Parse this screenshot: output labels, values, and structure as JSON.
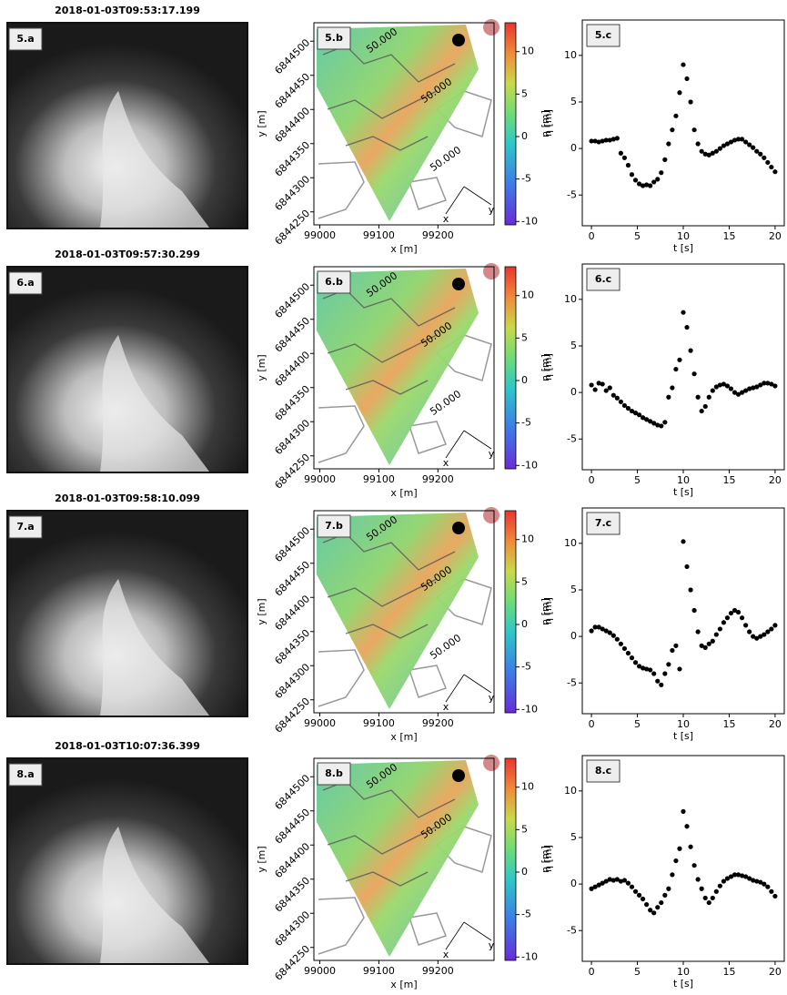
{
  "chart_data": [
    {
      "type": "image",
      "title": "2018-01-03T09:53:17.199",
      "label": "5.a"
    },
    {
      "type": "map",
      "label": "5.b",
      "xlabel": "x [m]",
      "ylabel": "y [m]",
      "xlim": [
        98990,
        99295
      ],
      "xticks": [
        99000,
        99100,
        99200
      ],
      "ylim": [
        6844231,
        6844527
      ],
      "yticks": [
        6844250,
        6844300,
        6844350,
        6844400,
        6844450,
        6844500
      ],
      "colorbar_label": "η [m]",
      "clim": [
        -10.4,
        13.4
      ],
      "cticks": [
        -10,
        -5,
        0,
        5,
        10
      ],
      "contour_labels": [
        "50.000",
        "50.000",
        "50.000"
      ],
      "compass": [
        "x",
        "y"
      ]
    },
    {
      "type": "scatter",
      "label": "5.c",
      "xlabel": "t [s]",
      "ylabel": "η [m]",
      "xlim": [
        -1,
        21
      ],
      "ylim": [
        -8.3,
        13.8
      ],
      "xticks": [
        0,
        5,
        10,
        15,
        20
      ],
      "yticks": [
        -5,
        0,
        5,
        10
      ],
      "series": [
        {
          "color": "#000000",
          "x": [
            0,
            0.4,
            0.8,
            1.2,
            1.6,
            2.0,
            2.4,
            2.8,
            3.2,
            3.6,
            4.0,
            4.4,
            4.8,
            5.2,
            5.6,
            6.0,
            6.4,
            6.8,
            7.2,
            7.6,
            8.0,
            8.4,
            8.8,
            9.2,
            9.6,
            10.0,
            10.4,
            10.8,
            11.2,
            11.6,
            12.0,
            12.4,
            12.8,
            13.2,
            13.6,
            14.0,
            14.4,
            14.8,
            15.2,
            15.6,
            16.0,
            16.4,
            16.8,
            17.2,
            17.6,
            18.0,
            18.4,
            18.8,
            19.2,
            19.6,
            20.0
          ],
          "values": [
            0.8,
            0.8,
            0.7,
            0.8,
            0.9,
            0.9,
            1.0,
            1.1,
            -0.5,
            -1.0,
            -1.8,
            -2.8,
            -3.4,
            -3.8,
            -4.0,
            -3.9,
            -4.0,
            -3.6,
            -3.3,
            -2.6,
            -1.2,
            0.5,
            2.0,
            3.5,
            6.0,
            9.0,
            7.5,
            5.0,
            2.0,
            0.5,
            -0.3,
            -0.6,
            -0.7,
            -0.5,
            -0.3,
            0.0,
            0.3,
            0.5,
            0.7,
            0.9,
            1.0,
            1.0,
            0.7,
            0.4,
            0.1,
            -0.3,
            -0.6,
            -1.0,
            -1.5,
            -2.0,
            -2.5
          ]
        }
      ]
    },
    {
      "type": "image",
      "title": "2018-01-03T09:57:30.299",
      "label": "6.a"
    },
    {
      "type": "map",
      "label": "6.b",
      "xlabel": "x [m]",
      "ylabel": "y [m]",
      "xlim": [
        98990,
        99295
      ],
      "xticks": [
        99000,
        99100,
        99200
      ],
      "ylim": [
        6844231,
        6844527
      ],
      "yticks": [
        6844250,
        6844300,
        6844350,
        6844400,
        6844450,
        6844500
      ],
      "colorbar_label": "η [m]",
      "clim": [
        -10.4,
        13.4
      ],
      "cticks": [
        -10,
        -5,
        0,
        5,
        10
      ],
      "contour_labels": [
        "50.000",
        "50.000",
        "50.000"
      ],
      "compass": [
        "x",
        "y"
      ]
    },
    {
      "type": "scatter",
      "label": "6.c",
      "xlabel": "t [s]",
      "ylabel": "η [m]",
      "xlim": [
        -1,
        21
      ],
      "ylim": [
        -8.3,
        13.8
      ],
      "xticks": [
        0,
        5,
        10,
        15,
        20
      ],
      "yticks": [
        -5,
        0,
        5,
        10
      ],
      "series": [
        {
          "color": "#000000",
          "x": [
            0,
            0.4,
            0.8,
            1.2,
            1.6,
            2.0,
            2.4,
            2.8,
            3.2,
            3.6,
            4.0,
            4.4,
            4.8,
            5.2,
            5.6,
            6.0,
            6.4,
            6.8,
            7.2,
            7.6,
            8.0,
            8.4,
            8.8,
            9.2,
            9.6,
            10.0,
            10.4,
            10.8,
            11.2,
            11.6,
            12.0,
            12.4,
            12.8,
            13.2,
            13.6,
            14.0,
            14.4,
            14.8,
            15.2,
            15.6,
            16.0,
            16.4,
            16.8,
            17.2,
            17.6,
            18.0,
            18.4,
            18.8,
            19.2,
            19.6,
            20.0
          ],
          "values": [
            0.8,
            0.3,
            1.0,
            0.9,
            0.2,
            0.5,
            -0.3,
            -0.6,
            -1.0,
            -1.4,
            -1.7,
            -2.0,
            -2.2,
            -2.4,
            -2.7,
            -2.9,
            -3.1,
            -3.3,
            -3.5,
            -3.6,
            -3.2,
            -0.5,
            0.5,
            2.5,
            3.5,
            8.6,
            7.0,
            4.5,
            2.0,
            -0.5,
            -2.0,
            -1.5,
            -0.5,
            0.2,
            0.6,
            0.8,
            0.9,
            0.7,
            0.4,
            0.0,
            -0.2,
            0.0,
            0.2,
            0.4,
            0.5,
            0.6,
            0.8,
            1.0,
            1.0,
            0.9,
            0.7
          ]
        }
      ]
    },
    {
      "type": "image",
      "title": "2018-01-03T09:58:10.099",
      "label": "7.a"
    },
    {
      "type": "map",
      "label": "7.b",
      "xlabel": "x [m]",
      "ylabel": "y [m]",
      "xlim": [
        98990,
        99295
      ],
      "xticks": [
        99000,
        99100,
        99200
      ],
      "ylim": [
        6844231,
        6844527
      ],
      "yticks": [
        6844250,
        6844300,
        6844350,
        6844400,
        6844450,
        6844500
      ],
      "colorbar_label": "η [m]",
      "clim": [
        -10.4,
        13.4
      ],
      "cticks": [
        -10,
        -5,
        0,
        5,
        10
      ],
      "contour_labels": [
        "50.000",
        "50.000",
        "50.000"
      ],
      "compass": [
        "x",
        "y"
      ]
    },
    {
      "type": "scatter",
      "label": "7.c",
      "xlabel": "t [s]",
      "ylabel": "η [m]",
      "xlim": [
        -1,
        21
      ],
      "ylim": [
        -8.3,
        13.8
      ],
      "xticks": [
        0,
        5,
        10,
        15,
        20
      ],
      "yticks": [
        -5,
        0,
        5,
        10
      ],
      "series": [
        {
          "color": "#000000",
          "x": [
            0,
            0.4,
            0.8,
            1.2,
            1.6,
            2.0,
            2.4,
            2.8,
            3.2,
            3.6,
            4.0,
            4.4,
            4.8,
            5.2,
            5.6,
            6.0,
            6.4,
            6.8,
            7.2,
            7.6,
            8.0,
            8.4,
            8.8,
            9.2,
            9.6,
            10.0,
            10.4,
            10.8,
            11.2,
            11.6,
            12.0,
            12.4,
            12.8,
            13.2,
            13.6,
            14.0,
            14.4,
            14.8,
            15.2,
            15.6,
            16.0,
            16.4,
            16.8,
            17.2,
            17.6,
            18.0,
            18.4,
            18.8,
            19.2,
            19.6,
            20.0
          ],
          "values": [
            0.6,
            1.0,
            1.0,
            0.8,
            0.6,
            0.4,
            0.1,
            -0.3,
            -0.8,
            -1.3,
            -1.8,
            -2.3,
            -2.8,
            -3.2,
            -3.4,
            -3.5,
            -3.6,
            -4.0,
            -4.8,
            -5.2,
            -4.0,
            -3.0,
            -1.5,
            -1.0,
            -3.5,
            10.2,
            7.5,
            5.0,
            2.8,
            0.5,
            -1.0,
            -1.2,
            -0.8,
            -0.5,
            0.2,
            0.8,
            1.5,
            2.0,
            2.5,
            2.8,
            2.6,
            2.0,
            1.2,
            0.5,
            0.0,
            -0.2,
            0.0,
            0.2,
            0.5,
            0.8,
            1.2
          ]
        }
      ]
    },
    {
      "type": "image",
      "title": "2018-01-03T10:07:36.399",
      "label": "8.a"
    },
    {
      "type": "map",
      "label": "8.b",
      "xlabel": "x [m]",
      "ylabel": "y [m]",
      "xlim": [
        98990,
        99295
      ],
      "xticks": [
        99000,
        99100,
        99200
      ],
      "ylim": [
        6844231,
        6844527
      ],
      "yticks": [
        6844250,
        6844300,
        6844350,
        6844400,
        6844450,
        6844500
      ],
      "colorbar_label": "η [m]",
      "clim": [
        -10.4,
        13.4
      ],
      "cticks": [
        -10,
        -5,
        0,
        5,
        10
      ],
      "contour_labels": [
        "50.000",
        "50.000"
      ],
      "compass": [
        "x",
        "y"
      ]
    },
    {
      "type": "scatter",
      "label": "8.c",
      "xlabel": "t [s]",
      "ylabel": "η [m]",
      "xlim": [
        -1,
        21
      ],
      "ylim": [
        -8.3,
        13.8
      ],
      "xticks": [
        0,
        5,
        10,
        15,
        20
      ],
      "yticks": [
        -5,
        0,
        5,
        10
      ],
      "series": [
        {
          "color": "#000000",
          "x": [
            0,
            0.4,
            0.8,
            1.2,
            1.6,
            2.0,
            2.4,
            2.8,
            3.2,
            3.6,
            4.0,
            4.4,
            4.8,
            5.2,
            5.6,
            6.0,
            6.4,
            6.8,
            7.2,
            7.6,
            8.0,
            8.4,
            8.8,
            9.2,
            9.6,
            10.0,
            10.4,
            10.8,
            11.2,
            11.6,
            12.0,
            12.4,
            12.8,
            13.2,
            13.6,
            14.0,
            14.4,
            14.8,
            15.2,
            15.6,
            16.0,
            16.4,
            16.8,
            17.2,
            17.6,
            18.0,
            18.4,
            18.8,
            19.2,
            19.6,
            20.0
          ],
          "values": [
            -0.5,
            -0.3,
            -0.1,
            0.1,
            0.3,
            0.5,
            0.4,
            0.5,
            0.3,
            0.4,
            0.1,
            -0.3,
            -0.8,
            -1.2,
            -1.6,
            -2.2,
            -2.8,
            -3.1,
            -2.5,
            -2.0,
            -1.2,
            -0.5,
            1.0,
            2.5,
            3.8,
            7.8,
            6.2,
            4.0,
            2.0,
            0.5,
            -0.5,
            -1.5,
            -2.0,
            -1.5,
            -0.8,
            -0.2,
            0.3,
            0.6,
            0.8,
            1.0,
            1.0,
            0.9,
            0.8,
            0.6,
            0.4,
            0.3,
            0.2,
            0.0,
            -0.3,
            -0.8,
            -1.3
          ]
        }
      ]
    }
  ]
}
